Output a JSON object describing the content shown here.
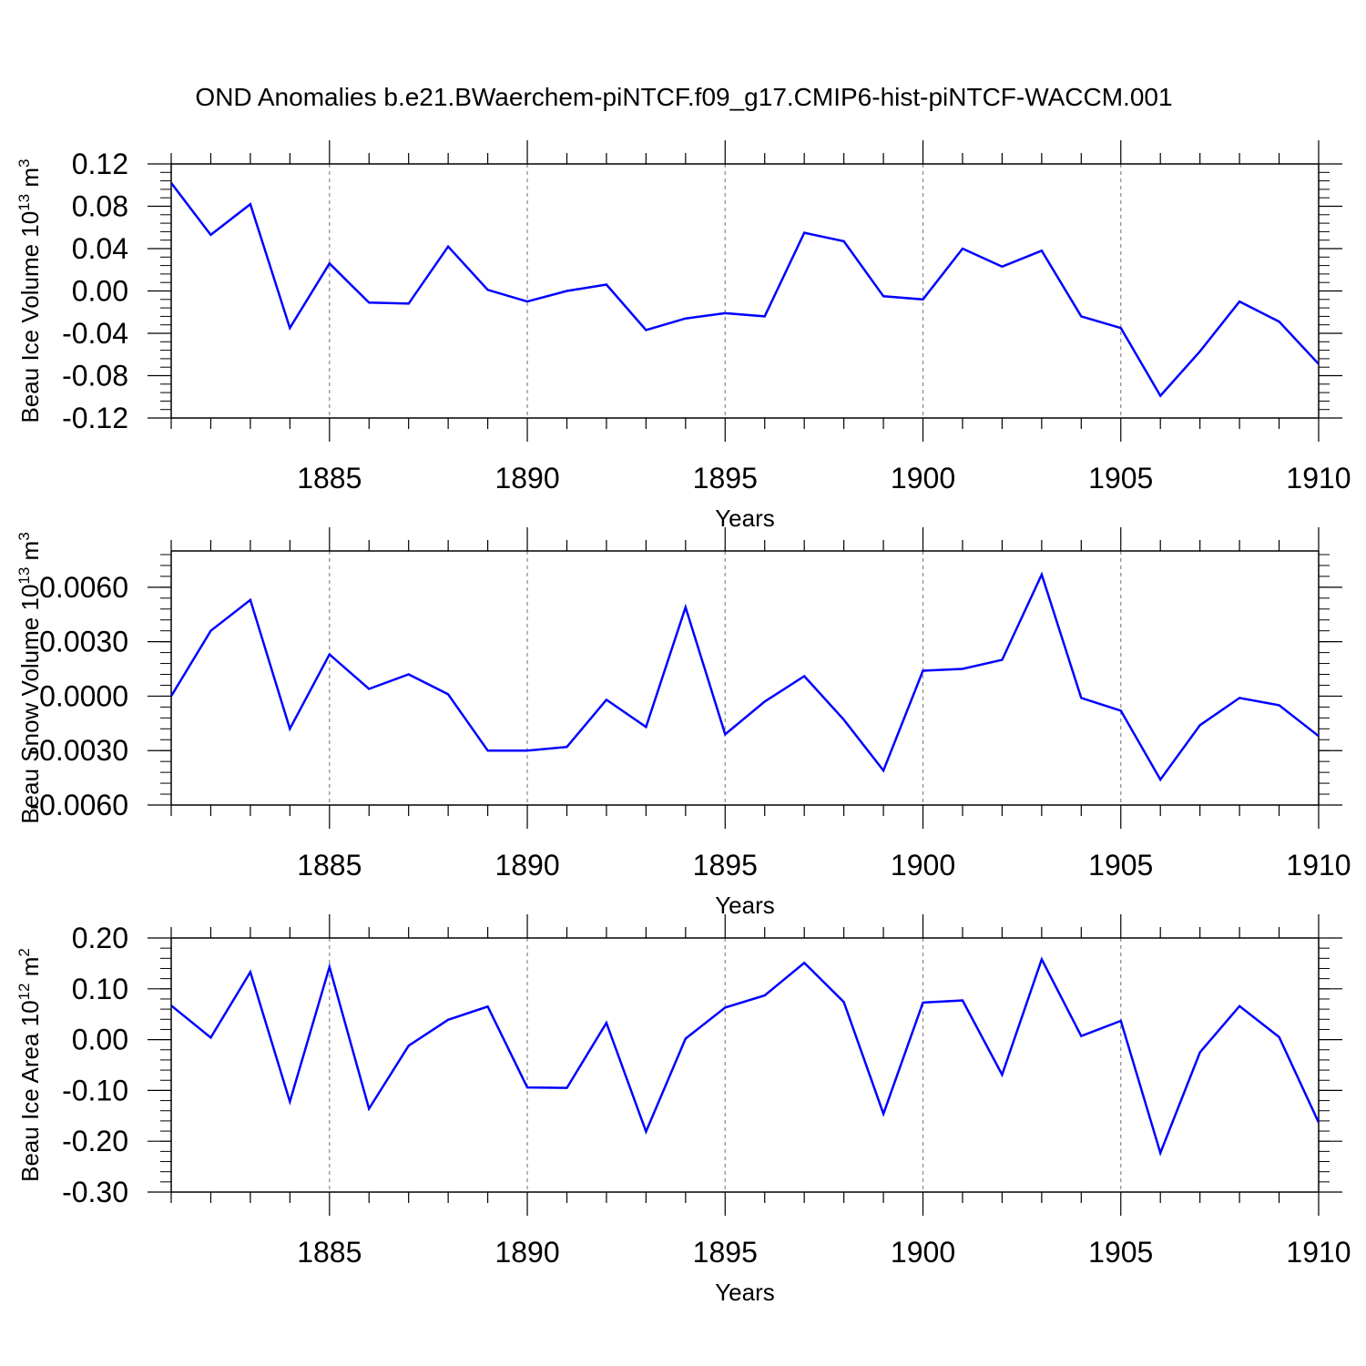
{
  "title": "OND Anomalies b.e21.BWaerchem-piNTCF.f09_g17.CMIP6-hist-piNTCF-WACCM.001",
  "colors": {
    "line": "#0000ff",
    "axis": "#000000",
    "grid": "#888888"
  },
  "chart_data": [
    {
      "type": "line",
      "ylabel": "Beau Ice Volume 10",
      "ylabel_exp": "13",
      "ylabel_unit": " m",
      "ylabel_unit_exp": "3",
      "xlabel": "Years",
      "xlim": [
        1881,
        1910
      ],
      "ylim": [
        -0.12,
        0.12
      ],
      "xticks": [
        1885,
        1890,
        1895,
        1900,
        1905,
        1910
      ],
      "yticks": [
        "-0.12",
        "-0.08",
        "-0.04",
        "0.00",
        "0.04",
        "0.08",
        "0.12"
      ],
      "x": [
        1881,
        1882,
        1883,
        1884,
        1885,
        1886,
        1887,
        1888,
        1889,
        1890,
        1891,
        1892,
        1893,
        1894,
        1895,
        1896,
        1897,
        1898,
        1899,
        1900,
        1901,
        1902,
        1903,
        1904,
        1905,
        1906,
        1907,
        1908,
        1909,
        1910
      ],
      "series": [
        {
          "name": "Beau Ice Volume",
          "values": [
            0.102,
            0.053,
            0.082,
            -0.035,
            0.026,
            -0.011,
            -0.012,
            0.042,
            0.001,
            -0.01,
            0.0,
            0.006,
            -0.037,
            -0.026,
            -0.021,
            -0.024,
            0.055,
            0.047,
            -0.005,
            -0.008,
            0.04,
            0.023,
            0.038,
            -0.024,
            -0.035,
            -0.099,
            -0.057,
            -0.01,
            -0.029,
            -0.069
          ]
        }
      ]
    },
    {
      "type": "line",
      "ylabel": "Beau Snow Volume 10",
      "ylabel_exp": "13",
      "ylabel_unit": " m",
      "ylabel_unit_exp": "3",
      "xlabel": "Years",
      "xlim": [
        1881,
        1910
      ],
      "ylim": [
        -0.006,
        0.008
      ],
      "xticks": [
        1885,
        1890,
        1895,
        1900,
        1905,
        1910
      ],
      "yticks": [
        "-0.0060",
        "-0.0030",
        "0.0000",
        "0.0030",
        "0.0060"
      ],
      "x": [
        1881,
        1882,
        1883,
        1884,
        1885,
        1886,
        1887,
        1888,
        1889,
        1890,
        1891,
        1892,
        1893,
        1894,
        1895,
        1896,
        1897,
        1898,
        1899,
        1900,
        1901,
        1902,
        1903,
        1904,
        1905,
        1906,
        1907,
        1908,
        1909,
        1910
      ],
      "series": [
        {
          "name": "Beau Snow Volume",
          "values": [
            0.0,
            0.0036,
            0.0053,
            -0.0018,
            0.0023,
            0.0004,
            0.0012,
            0.0001,
            -0.003,
            -0.003,
            -0.0028,
            -0.0002,
            -0.0017,
            0.0049,
            -0.0021,
            -0.0003,
            0.0011,
            -0.0013,
            -0.0041,
            0.0014,
            0.0015,
            0.002,
            0.0067,
            -0.0001,
            -0.0008,
            -0.0046,
            -0.0016,
            -0.0001,
            -0.0005,
            -0.0022
          ]
        }
      ]
    },
    {
      "type": "line",
      "ylabel": "Beau Ice Area 10",
      "ylabel_exp": "12",
      "ylabel_unit": " m",
      "ylabel_unit_exp": "2",
      "xlabel": "Years",
      "xlim": [
        1881,
        1910
      ],
      "ylim": [
        -0.3,
        0.2
      ],
      "xticks": [
        1885,
        1890,
        1895,
        1900,
        1905,
        1910
      ],
      "yticks": [
        "-0.30",
        "-0.20",
        "-0.10",
        "0.00",
        "0.10",
        "0.20"
      ],
      "x": [
        1881,
        1882,
        1883,
        1884,
        1885,
        1886,
        1887,
        1888,
        1889,
        1890,
        1891,
        1892,
        1893,
        1894,
        1895,
        1896,
        1897,
        1898,
        1899,
        1900,
        1901,
        1902,
        1903,
        1904,
        1905,
        1906,
        1907,
        1908,
        1909,
        1910
      ],
      "series": [
        {
          "name": "Beau Ice Area",
          "values": [
            0.067,
            0.004,
            0.133,
            -0.122,
            0.143,
            -0.136,
            -0.012,
            0.039,
            0.065,
            -0.094,
            -0.095,
            0.033,
            -0.181,
            0.002,
            0.063,
            0.087,
            0.151,
            0.074,
            -0.146,
            0.073,
            0.077,
            -0.069,
            0.158,
            0.007,
            0.037,
            -0.223,
            -0.025,
            0.066,
            0.005,
            -0.163
          ]
        }
      ]
    }
  ]
}
